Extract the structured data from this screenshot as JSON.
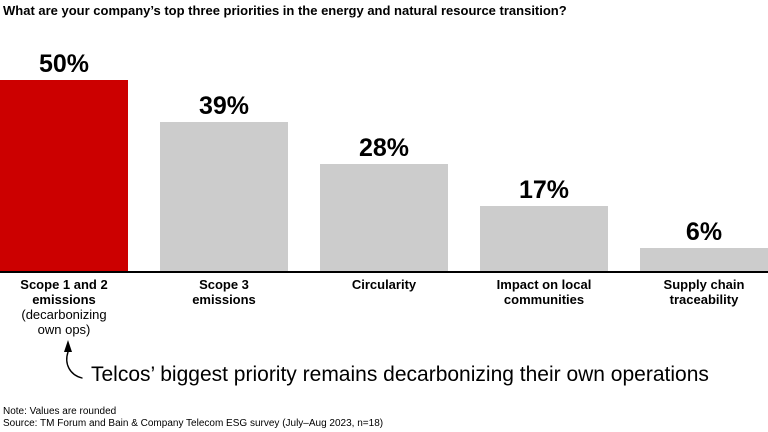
{
  "title": "What are your company’s top three priorities in the energy and natural resource transition?",
  "chart_data": {
    "type": "bar",
    "title": "What are your company’s top three priorities in the energy and natural resource transition?",
    "categories": [
      "Scope 1 and 2 emissions (decarbonizing own ops)",
      "Scope 3 emissions",
      "Circularity",
      "Impact on local communities",
      "Supply chain traceability"
    ],
    "values": [
      50,
      39,
      28,
      17,
      6
    ],
    "data_labels": [
      "50%",
      "39%",
      "28%",
      "17%",
      "6%"
    ],
    "unit": "%",
    "xlabel": "",
    "ylabel": "",
    "ylim": [
      0,
      52
    ],
    "grid": false,
    "legend": false,
    "highlighted_index": 0,
    "highlight_color": "#CC0000",
    "bar_color": "#CCCCCC",
    "axis_color": "#000000",
    "annotation": "Telcos’ biggest priority remains decarbonizing their own operations"
  },
  "bars": [
    {
      "label_lines": [
        "Scope 1 and 2",
        "emissions"
      ],
      "sub_label_lines": [
        "(decarbonizing",
        "own ops)"
      ]
    },
    {
      "label_lines": [
        "Scope 3",
        "emissions"
      ],
      "sub_label_lines": []
    },
    {
      "label_lines": [
        "Circularity"
      ],
      "sub_label_lines": []
    },
    {
      "label_lines": [
        "Impact on local",
        "communities"
      ],
      "sub_label_lines": []
    },
    {
      "label_lines": [
        "Supply chain",
        "traceability"
      ],
      "sub_label_lines": []
    }
  ],
  "annotation": {
    "text": "Telcos’ biggest priority remains decarbonizing their own operations"
  },
  "footnotes": {
    "note": "Note: Values are rounded",
    "source": "Source: TM Forum and Bain & Company Telecom ESG survey (July–Aug 2023, n=18)"
  }
}
